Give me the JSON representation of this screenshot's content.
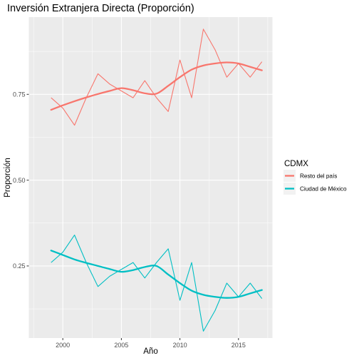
{
  "chart_data": {
    "type": "line",
    "title": "Inversión Extranjera Directa (Proporción)",
    "xlabel": "Año",
    "ylabel": "Proporción",
    "x": [
      1999,
      2000,
      2001,
      2002,
      2003,
      2004,
      2005,
      2006,
      2007,
      2008,
      2009,
      2010,
      2011,
      2012,
      2013,
      2014,
      2015,
      2016,
      2017
    ],
    "xlim": [
      1997.1,
      2017.9
    ],
    "ylim": [
      0.04,
      0.975
    ],
    "x_ticks": [
      2000,
      2005,
      2010,
      2015
    ],
    "x_tick_labels": [
      "2000",
      "2005",
      "2010",
      "2015"
    ],
    "y_ticks": [
      0.25,
      0.5,
      0.75
    ],
    "y_tick_labels": [
      "0.25",
      "0.50",
      "0.75"
    ],
    "grid": true,
    "legend": {
      "title": "CDMX",
      "placement": "right",
      "entries": [
        "Resto del país",
        "Ciudad de México"
      ]
    },
    "series": [
      {
        "name": "Resto del país",
        "color": "#F8766D",
        "values": [
          0.74,
          0.71,
          0.66,
          0.74,
          0.81,
          0.78,
          0.76,
          0.74,
          0.79,
          0.74,
          0.7,
          0.85,
          0.74,
          0.94,
          0.88,
          0.8,
          0.84,
          0.8,
          0.845
        ],
        "smooth": [
          0.705,
          0.718,
          0.73,
          0.741,
          0.751,
          0.76,
          0.768,
          0.762,
          0.753,
          0.752,
          0.775,
          0.8,
          0.822,
          0.834,
          0.84,
          0.843,
          0.84,
          0.83,
          0.82
        ]
      },
      {
        "name": "Ciudad de México",
        "color": "#00BFC4",
        "values": [
          0.26,
          0.29,
          0.34,
          0.26,
          0.19,
          0.22,
          0.24,
          0.26,
          0.215,
          0.26,
          0.3,
          0.15,
          0.26,
          0.06,
          0.12,
          0.2,
          0.16,
          0.2,
          0.155
        ],
        "smooth": [
          0.295,
          0.282,
          0.269,
          0.259,
          0.25,
          0.241,
          0.233,
          0.238,
          0.247,
          0.25,
          0.225,
          0.2,
          0.178,
          0.166,
          0.16,
          0.157,
          0.16,
          0.17,
          0.18
        ]
      }
    ]
  }
}
